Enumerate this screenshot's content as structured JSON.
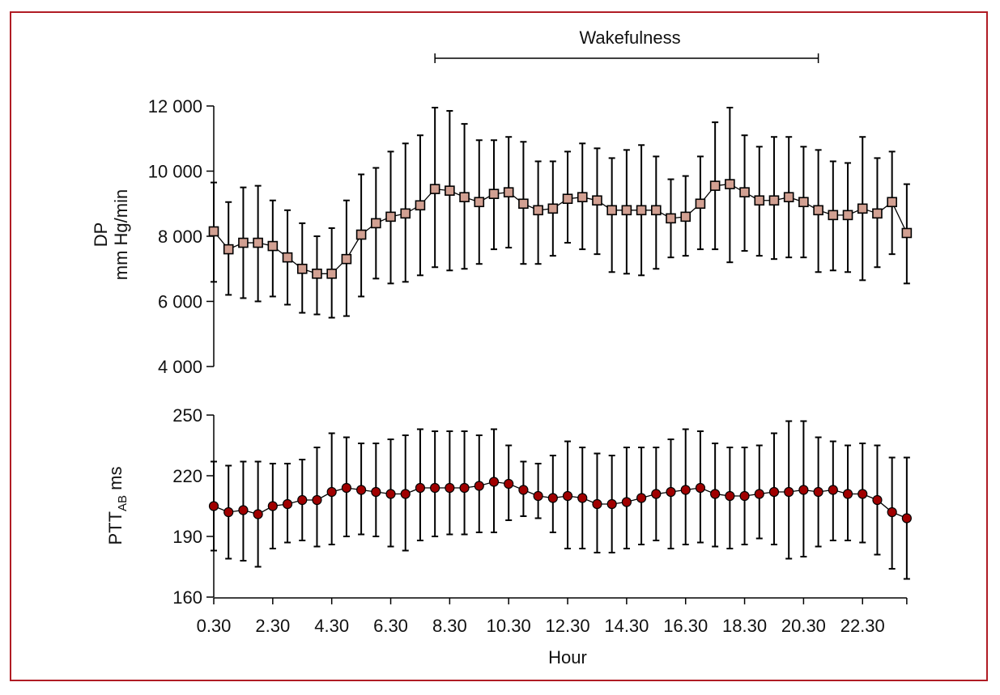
{
  "colors": {
    "frame": "#b01c24",
    "dp_marker": "#d2a092",
    "ptt_marker": "#a00000",
    "line": "#000000"
  },
  "annotation": {
    "label": "Wakefulness",
    "from_hour": 8.0,
    "to_hour": 21.0
  },
  "chart_data": [
    {
      "type": "line",
      "ylabel_line1": "DP",
      "ylabel_line2": "mm Hg/min",
      "ylim": [
        4000,
        12000
      ],
      "yticks": [
        4000,
        6000,
        8000,
        10000,
        12000
      ],
      "ytick_labels": [
        "4 000",
        "6 000",
        "8 000",
        "10 000",
        "12 000"
      ],
      "marker": "square",
      "mean": [
        8150,
        7600,
        7800,
        7800,
        7700,
        7350,
        7000,
        6850,
        6850,
        7300,
        8050,
        8400,
        8600,
        8700,
        8950,
        9450,
        9400,
        9200,
        9050,
        9300,
        9350,
        9000,
        8800,
        8850,
        9150,
        9200,
        9100,
        8800,
        8800,
        8800,
        8800,
        8550,
        8600,
        9000,
        9550,
        9600,
        9350,
        9100,
        9100,
        9200,
        9050,
        8800,
        8650,
        8650,
        8850,
        8700,
        9050,
        8100
      ],
      "upper": [
        9650,
        9050,
        9500,
        9550,
        9100,
        8800,
        8400,
        8000,
        8250,
        9100,
        9900,
        10100,
        10600,
        10850,
        11100,
        11950,
        11850,
        11450,
        10950,
        10950,
        11050,
        10900,
        10300,
        10300,
        10600,
        10850,
        10700,
        10400,
        10650,
        10800,
        10450,
        9750,
        9850,
        10450,
        11500,
        11950,
        11100,
        10750,
        11050,
        11050,
        10750,
        10650,
        10300,
        10250,
        11050,
        10400,
        10600,
        9600
      ],
      "lower": [
        6600,
        6200,
        6100,
        6000,
        6150,
        5900,
        5650,
        5600,
        5500,
        5550,
        6150,
        6700,
        6550,
        6600,
        6800,
        7050,
        6950,
        7000,
        7150,
        7600,
        7650,
        7150,
        7150,
        7400,
        7800,
        7600,
        7450,
        6900,
        6850,
        6800,
        7000,
        7350,
        7400,
        7600,
        7600,
        7200,
        7550,
        7400,
        7300,
        7350,
        7350,
        6900,
        6950,
        6900,
        6650,
        7050,
        7450,
        6550
      ]
    },
    {
      "type": "line",
      "ylabel_main": "PTT",
      "ylabel_sub": "AB",
      "ylabel_unit": " ms",
      "ylim": [
        160,
        250
      ],
      "yticks": [
        160,
        190,
        220,
        250
      ],
      "ytick_labels": [
        "160",
        "190",
        "220",
        "250"
      ],
      "xlabel": "Hour",
      "xtick_labels": [
        "0.30",
        "2.30",
        "4.30",
        "6.30",
        "8.30",
        "10.30",
        "12.30",
        "14.30",
        "16.30",
        "18.30",
        "20.30",
        "22.30"
      ],
      "marker": "circle",
      "mean": [
        205,
        202,
        203,
        201,
        205,
        206,
        208,
        208,
        212,
        214,
        213,
        212,
        211,
        211,
        214,
        214,
        214,
        214,
        215,
        217,
        216,
        213,
        210,
        209,
        210,
        209,
        206,
        206,
        207,
        209,
        211,
        212,
        213,
        214,
        211,
        210,
        210,
        211,
        212,
        212,
        213,
        212,
        213,
        211,
        211,
        208,
        202,
        199
      ],
      "upper": [
        227,
        225,
        227,
        227,
        226,
        226,
        228,
        234,
        241,
        239,
        236,
        236,
        238,
        240,
        243,
        242,
        242,
        242,
        240,
        243,
        235,
        227,
        226,
        230,
        237,
        234,
        231,
        230,
        234,
        234,
        234,
        238,
        243,
        242,
        236,
        234,
        234,
        235,
        241,
        247,
        247,
        239,
        237,
        235,
        236,
        235,
        229,
        229
      ],
      "lower": [
        183,
        179,
        178,
        175,
        184,
        187,
        188,
        185,
        186,
        190,
        191,
        190,
        185,
        183,
        188,
        190,
        191,
        191,
        192,
        192,
        198,
        200,
        199,
        192,
        184,
        184,
        182,
        182,
        184,
        186,
        188,
        184,
        186,
        187,
        185,
        184,
        186,
        189,
        186,
        179,
        180,
        185,
        188,
        188,
        187,
        181,
        174,
        169
      ]
    }
  ]
}
